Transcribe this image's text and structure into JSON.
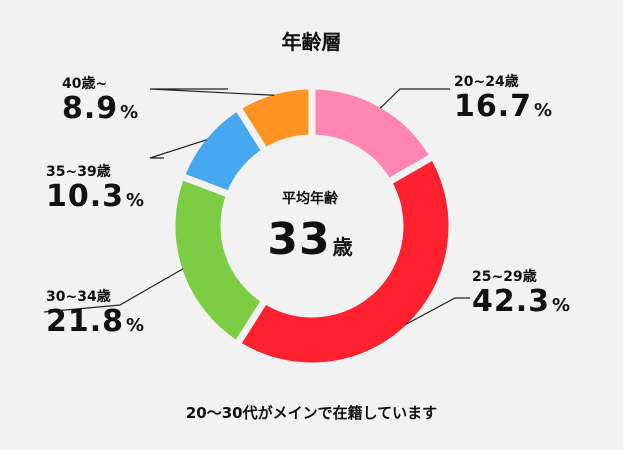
{
  "title": "年齢層",
  "center": {
    "label": "平均年齢",
    "value": "33",
    "unit": "歳"
  },
  "caption": "20〜30代がメインで在籍しています",
  "percent_sign": "%",
  "chart_data": {
    "type": "pie",
    "title": "年齢層",
    "categories": [
      "20~24歳",
      "25~29歳",
      "30~34歳",
      "35~39歳",
      "40歳~"
    ],
    "values": [
      16.7,
      42.3,
      21.8,
      10.3,
      8.9
    ],
    "value_labels": [
      "16.7",
      "42.3",
      "21.8",
      "10.3",
      "8.9"
    ],
    "colors": [
      "#ff85b2",
      "#ff2030",
      "#7ccc44",
      "#47a8f2",
      "#ff9424"
    ],
    "unit": "%"
  }
}
